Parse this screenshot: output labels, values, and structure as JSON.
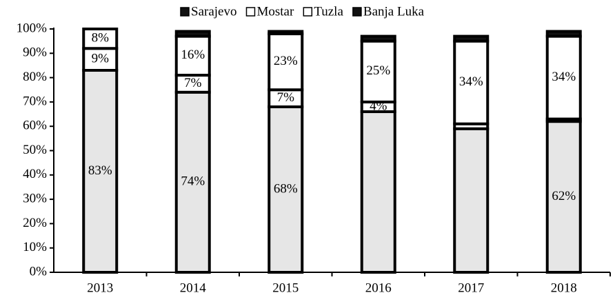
{
  "chart_data": {
    "type": "stacked_bar",
    "categories": [
      "2013",
      "2014",
      "2015",
      "2016",
      "2017",
      "2018"
    ],
    "series": [
      {
        "name": "Sarajevo",
        "color": "#e6e6e6",
        "values": [
          83,
          74,
          68,
          66,
          59,
          62
        ],
        "value_labels": [
          "83%",
          "74%",
          "68%",
          null,
          null,
          "62%"
        ]
      },
      {
        "name": "Mostar",
        "color": "#ffffff",
        "values": [
          9,
          7,
          7,
          4,
          2,
          1
        ],
        "value_labels": [
          "9%",
          "7%",
          "7%",
          "4%",
          null,
          null
        ]
      },
      {
        "name": "Tuzla",
        "color": "#ffffff",
        "values": [
          8,
          16,
          23,
          25,
          34,
          34
        ],
        "value_labels": [
          "8%",
          "16%",
          "23%",
          "25%",
          "34%",
          "34%"
        ]
      },
      {
        "name": "Banja Luka",
        "color": "#111111",
        "values": [
          0,
          2,
          1,
          2,
          2,
          2
        ],
        "value_labels": [
          null,
          null,
          null,
          null,
          null,
          null
        ]
      }
    ],
    "ylim": [
      0,
      100
    ],
    "yticks": [
      {
        "value": 0,
        "label": "0%"
      },
      {
        "value": 10,
        "label": "10%"
      },
      {
        "value": 20,
        "label": "20%"
      },
      {
        "value": 30,
        "label": "30%"
      },
      {
        "value": 40,
        "label": "40%"
      },
      {
        "value": 50,
        "label": "50%"
      },
      {
        "value": 60,
        "label": "60%"
      },
      {
        "value": 70,
        "label": "70%"
      },
      {
        "value": 80,
        "label": "80%"
      },
      {
        "value": 90,
        "label": "90%"
      },
      {
        "value": 100,
        "label": "100%"
      }
    ],
    "legend": "top"
  }
}
